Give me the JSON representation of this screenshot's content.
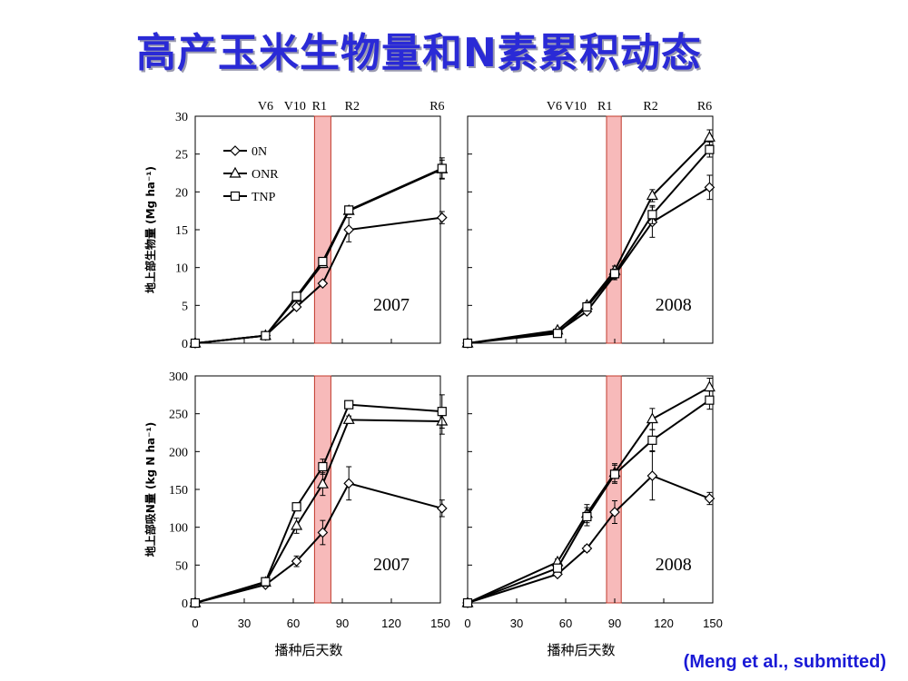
{
  "title": "高产玉米生物量和N素累积动态",
  "citation": "(Meng et al., submitted)",
  "colors": {
    "title": "#2a2ad6",
    "citation": "#1a1ad6",
    "highlight_fill": "#f4a3a3",
    "highlight_stroke": "#c0392b",
    "line": "#000000"
  },
  "legend": [
    {
      "label": "0N",
      "marker": "diamond"
    },
    {
      "label": "ONR",
      "marker": "triangle"
    },
    {
      "label": "TNP",
      "marker": "square"
    }
  ],
  "x_axis_label": "播种后天数",
  "chart_data": [
    {
      "type": "line",
      "panel": "top-left",
      "year_label": "2007",
      "ylabel": "地上部生物量 (Mg ha⁻¹)",
      "ylim": [
        0,
        30
      ],
      "yticks": [
        "0",
        "5",
        "10",
        "15",
        "20",
        "25",
        "30"
      ],
      "xlim": [
        0,
        150
      ],
      "stages": [
        {
          "label": "V6",
          "x": 43
        },
        {
          "label": "V10",
          "x": 61
        },
        {
          "label": "R1",
          "x": 76
        },
        {
          "label": "R2",
          "x": 96
        },
        {
          "label": "R6",
          "x": 148
        }
      ],
      "highlight_x": [
        73,
        83
      ],
      "series": [
        {
          "name": "0N",
          "x": [
            0,
            43,
            62,
            78,
            94,
            151
          ],
          "y": [
            0,
            1,
            4.8,
            7.9,
            15,
            16.6
          ],
          "err": [
            0,
            0,
            0.3,
            0.3,
            1.6,
            0.8
          ]
        },
        {
          "name": "ONR",
          "x": [
            0,
            43,
            62,
            78,
            94,
            151
          ],
          "y": [
            0,
            1,
            6,
            10.5,
            17.5,
            23
          ],
          "err": [
            0,
            0,
            0.3,
            0.5,
            0.4,
            1.2
          ]
        },
        {
          "name": "TNP",
          "x": [
            0,
            43,
            62,
            78,
            94,
            151
          ],
          "y": [
            0,
            1,
            6.2,
            10.8,
            17.6,
            23.1
          ],
          "err": [
            0,
            0,
            0.3,
            0.5,
            0.4,
            1.4
          ]
        }
      ]
    },
    {
      "type": "line",
      "panel": "top-right",
      "year_label": "2008",
      "ylim": [
        0,
        30
      ],
      "xlim": [
        0,
        150
      ],
      "stages": [
        {
          "label": "V6",
          "x": 53
        },
        {
          "label": "V10",
          "x": 66
        },
        {
          "label": "R1",
          "x": 84
        },
        {
          "label": "R2",
          "x": 112
        },
        {
          "label": "R6",
          "x": 145
        }
      ],
      "highlight_x": [
        85,
        94
      ],
      "series": [
        {
          "name": "0N",
          "x": [
            0,
            55,
            73,
            90,
            113,
            148
          ],
          "y": [
            0,
            1.5,
            4.2,
            9,
            16,
            20.6
          ],
          "err": [
            0,
            0,
            0.3,
            0.6,
            2,
            1.6
          ]
        },
        {
          "name": "ONR",
          "x": [
            0,
            55,
            73,
            90,
            113,
            148
          ],
          "y": [
            0,
            1.7,
            5,
            9.6,
            19.5,
            27.2
          ],
          "err": [
            0,
            0,
            0.3,
            0.6,
            0.8,
            1
          ]
        },
        {
          "name": "TNP",
          "x": [
            0,
            55,
            73,
            90,
            113,
            148
          ],
          "y": [
            0,
            1.3,
            4.8,
            9.2,
            17,
            25.6
          ],
          "err": [
            0,
            0,
            0.3,
            0.6,
            1.2,
            1
          ]
        }
      ]
    },
    {
      "type": "line",
      "panel": "bottom-left",
      "year_label": "2007",
      "ylabel": "地上部吸N量 (kg N ha⁻¹)",
      "ylim": [
        0,
        300
      ],
      "yticks": [
        "0",
        "50",
        "100",
        "150",
        "200",
        "250",
        "300"
      ],
      "xlim": [
        0,
        150
      ],
      "xticks": [
        "0",
        "30",
        "60",
        "90",
        "120",
        "150"
      ],
      "highlight_x": [
        73,
        83
      ],
      "series": [
        {
          "name": "0N",
          "x": [
            0,
            43,
            62,
            78,
            94,
            151
          ],
          "y": [
            0,
            24,
            55,
            93,
            158,
            125
          ],
          "err": [
            0,
            2,
            7,
            16,
            22,
            11
          ]
        },
        {
          "name": "ONR",
          "x": [
            0,
            43,
            62,
            78,
            94,
            151
          ],
          "y": [
            0,
            27,
            102,
            157,
            242,
            240
          ],
          "err": [
            0,
            2,
            10,
            15,
            5,
            17
          ]
        },
        {
          "name": "TNP",
          "x": [
            0,
            43,
            62,
            78,
            94,
            151
          ],
          "y": [
            0,
            28,
            127,
            180,
            262,
            253
          ],
          "err": [
            0,
            2,
            5,
            10,
            5,
            22
          ]
        }
      ]
    },
    {
      "type": "line",
      "panel": "bottom-right",
      "year_label": "2008",
      "ylim": [
        0,
        300
      ],
      "xlim": [
        0,
        150
      ],
      "xticks": [
        "0",
        "30",
        "60",
        "90",
        "120",
        "150"
      ],
      "highlight_x": [
        85,
        94
      ],
      "series": [
        {
          "name": "0N",
          "x": [
            0,
            55,
            73,
            90,
            113,
            148
          ],
          "y": [
            0,
            38,
            72,
            120,
            168,
            138
          ],
          "err": [
            0,
            3,
            4,
            15,
            32,
            8
          ]
        },
        {
          "name": "ONR",
          "x": [
            0,
            55,
            73,
            90,
            113,
            148
          ],
          "y": [
            0,
            54,
            118,
            172,
            243,
            285
          ],
          "err": [
            0,
            4,
            12,
            12,
            14,
            12
          ]
        },
        {
          "name": "TNP",
          "x": [
            0,
            55,
            73,
            90,
            113,
            148
          ],
          "y": [
            0,
            46,
            114,
            170,
            215,
            268
          ],
          "err": [
            0,
            4,
            12,
            12,
            14,
            12
          ]
        }
      ]
    }
  ]
}
